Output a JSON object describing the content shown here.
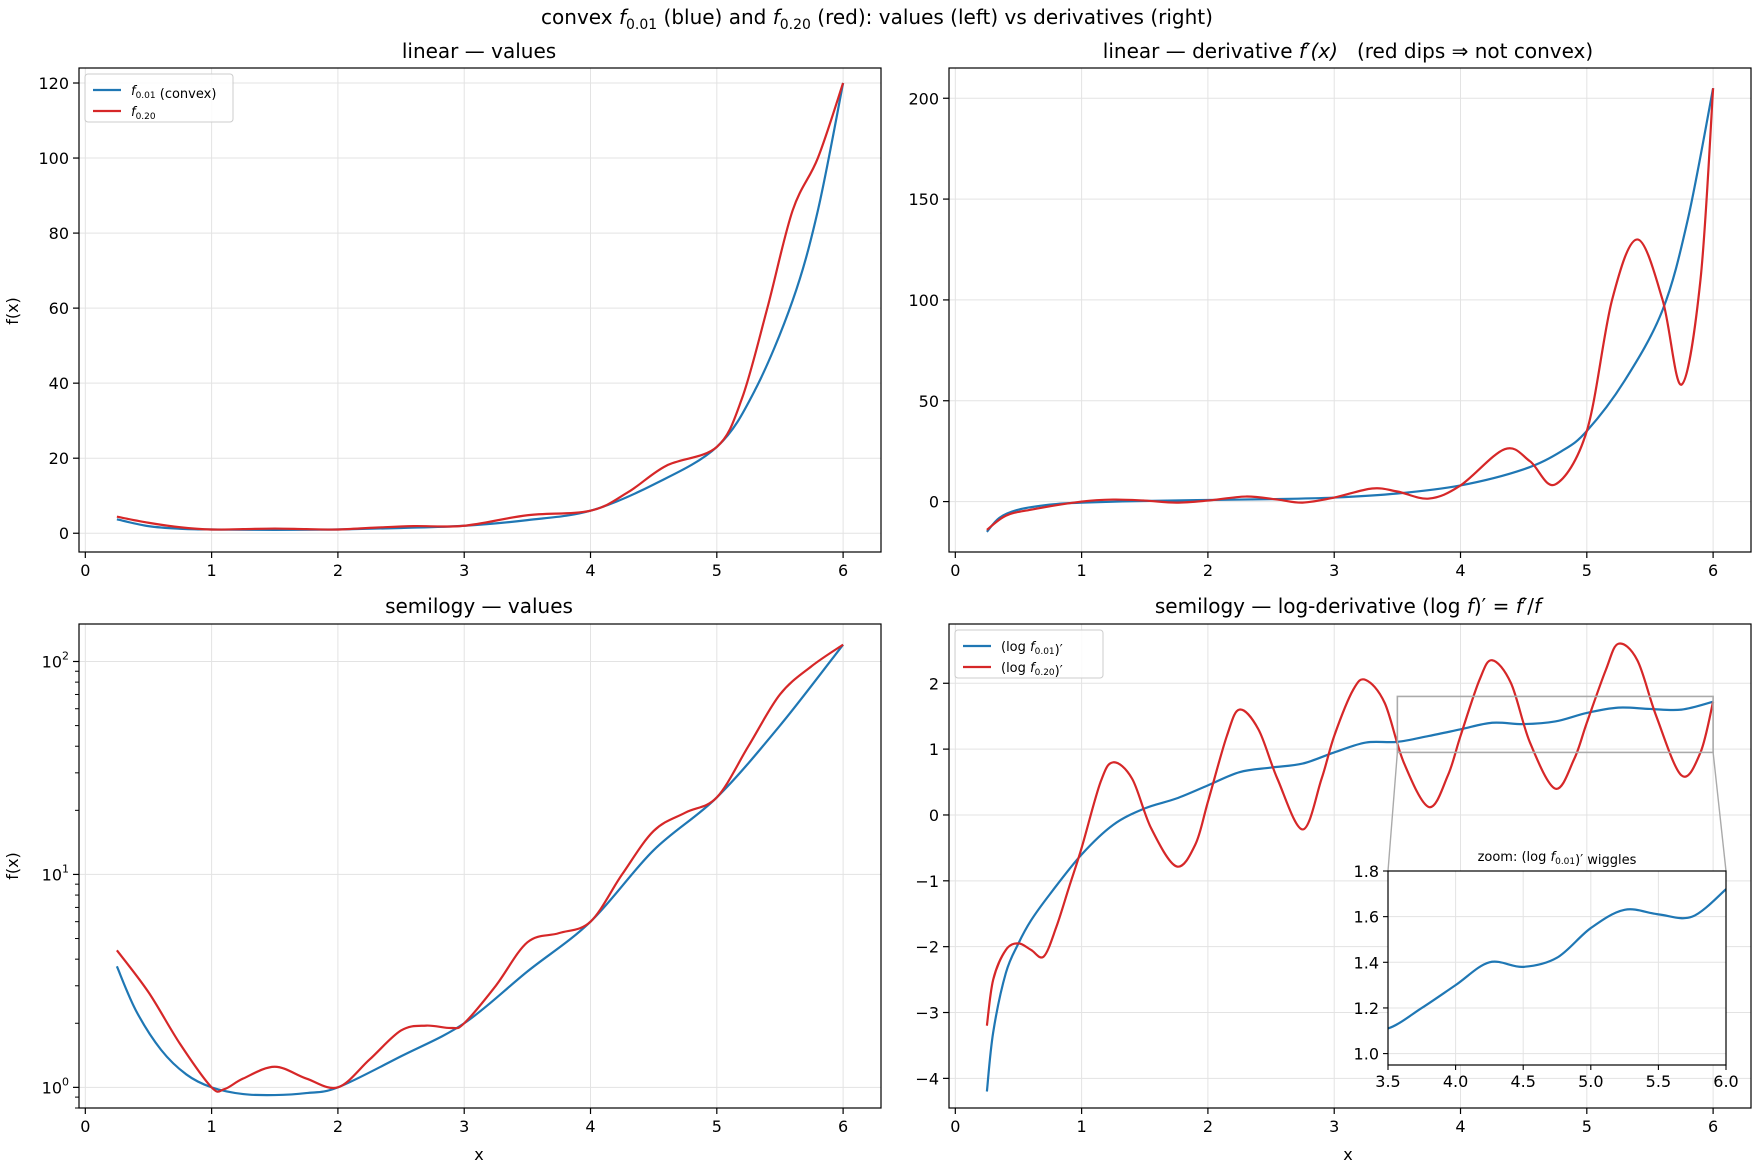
{
  "figure": {
    "suptitle_parts": [
      "convex ",
      "f",
      "0.01",
      " (blue) and ",
      "f",
      "0.20",
      " (red): values (left) vs derivatives (right)"
    ]
  },
  "colors": {
    "blue": "#1f77b4",
    "red": "#d62728",
    "inset_box": "#aaaaaa"
  },
  "chart_data": [
    {
      "id": "tl",
      "type": "line",
      "title": "linear — values",
      "xlabel": "",
      "ylabel": "f(x)",
      "yscale": "linear",
      "xlim": [
        -0.05,
        6.3
      ],
      "ylim": [
        -5,
        124
      ],
      "xticks": [
        0,
        1,
        2,
        3,
        4,
        5,
        6
      ],
      "yticks": [
        0,
        20,
        40,
        60,
        80,
        100,
        120
      ],
      "grid": true,
      "legend": {
        "placement": "upper-left",
        "entries": [
          {
            "label_parts": [
              "f",
              "0.01",
              " (convex)"
            ],
            "series": 0
          },
          {
            "label_parts": [
              "f",
              "0.20",
              ""
            ],
            "series": 1
          }
        ]
      },
      "series": [
        {
          "name": "f0.01 (convex)",
          "color": "blue",
          "x": [
            0.25,
            0.5,
            0.75,
            1.0,
            1.5,
            2.0,
            2.5,
            3.0,
            3.5,
            4.0,
            4.5,
            5.0,
            5.3,
            5.6,
            5.8,
            6.0
          ],
          "y": [
            3.7,
            1.9,
            1.2,
            1.0,
            0.9,
            1.0,
            1.4,
            2.0,
            3.5,
            6.0,
            13.0,
            23.0,
            38.0,
            62.0,
            86.0,
            120.0
          ]
        },
        {
          "name": "f0.20",
          "color": "red",
          "x": [
            0.25,
            0.5,
            0.75,
            1.0,
            1.25,
            1.5,
            1.75,
            2.0,
            2.3,
            2.6,
            3.0,
            3.5,
            4.0,
            4.3,
            4.6,
            5.0,
            5.2,
            5.4,
            5.6,
            5.8,
            6.0
          ],
          "y": [
            4.4,
            2.8,
            1.6,
            1.0,
            1.1,
            1.25,
            1.1,
            1.0,
            1.5,
            1.9,
            2.0,
            4.8,
            6.0,
            11.0,
            18.0,
            23.0,
            36.0,
            60.0,
            86.0,
            100.0,
            120.0
          ]
        }
      ]
    },
    {
      "id": "tr",
      "type": "line",
      "title_parts": [
        "linear — derivative ",
        "f′(x)",
        "   (red dips ⇒ not convex)"
      ],
      "xlabel": "",
      "ylabel": "",
      "yscale": "linear",
      "xlim": [
        -0.05,
        6.3
      ],
      "ylim": [
        -25,
        215
      ],
      "xticks": [
        0,
        1,
        2,
        3,
        4,
        5,
        6
      ],
      "yticks": [
        0,
        50,
        100,
        150,
        200
      ],
      "grid": true,
      "series": [
        {
          "name": "f0.01′",
          "color": "blue",
          "x": [
            0.25,
            0.35,
            0.5,
            0.75,
            1.0,
            1.5,
            2.0,
            2.5,
            3.0,
            3.5,
            4.0,
            4.5,
            4.8,
            5.0,
            5.3,
            5.6,
            5.8,
            6.0
          ],
          "y": [
            -15,
            -8,
            -4,
            -1.5,
            -0.5,
            0.3,
            0.8,
            1.2,
            2.0,
            4.0,
            8.0,
            16.0,
            25.0,
            35.0,
            60.0,
            95.0,
            140.0,
            205.0
          ]
        },
        {
          "name": "f0.20′",
          "color": "red",
          "x": [
            0.25,
            0.4,
            0.6,
            1.0,
            1.25,
            1.5,
            1.75,
            2.0,
            2.3,
            2.55,
            2.75,
            3.0,
            3.3,
            3.5,
            3.75,
            4.0,
            4.35,
            4.55,
            4.75,
            5.0,
            5.2,
            5.4,
            5.6,
            5.75,
            5.9,
            6.0
          ],
          "y": [
            -14,
            -7,
            -4,
            0,
            1,
            0.5,
            -0.5,
            0.5,
            2.5,
            1.0,
            -0.5,
            2.0,
            6.5,
            5.0,
            1.5,
            8.0,
            26.0,
            20.0,
            8.5,
            35.0,
            100.0,
            130.0,
            100.0,
            58.0,
            110.0,
            205.0
          ]
        }
      ]
    },
    {
      "id": "bl",
      "type": "line",
      "title": "semilogy — values",
      "xlabel": "x",
      "ylabel": "f(x)",
      "yscale": "log",
      "xlim": [
        -0.05,
        6.3
      ],
      "ylim": [
        0.8,
        150
      ],
      "xticks": [
        0,
        1,
        2,
        3,
        4,
        5,
        6
      ],
      "yticks_log": [
        {
          "value": 1,
          "base": "10",
          "exp": "0"
        },
        {
          "value": 10,
          "base": "10",
          "exp": "1"
        },
        {
          "value": 100,
          "base": "10",
          "exp": "2"
        }
      ],
      "grid": true,
      "series": [
        {
          "name": "f0.01 (convex)",
          "color": "blue",
          "x": [
            0.25,
            0.4,
            0.6,
            0.8,
            1.0,
            1.25,
            1.5,
            1.75,
            2.0,
            2.5,
            3.0,
            3.5,
            4.0,
            4.5,
            5.0,
            5.5,
            6.0
          ],
          "y": [
            3.7,
            2.3,
            1.5,
            1.15,
            1.0,
            0.93,
            0.92,
            0.94,
            1.0,
            1.4,
            2.0,
            3.5,
            6.0,
            13.0,
            23.0,
            50.0,
            120.0
          ]
        },
        {
          "name": "f0.20",
          "color": "red",
          "x": [
            0.25,
            0.5,
            0.75,
            1.0,
            1.1,
            1.25,
            1.5,
            1.75,
            2.0,
            2.25,
            2.5,
            2.7,
            2.9,
            3.0,
            3.25,
            3.5,
            3.75,
            4.0,
            4.25,
            4.5,
            4.75,
            5.0,
            5.25,
            5.5,
            5.75,
            6.0
          ],
          "y": [
            4.4,
            2.8,
            1.6,
            1.0,
            0.98,
            1.1,
            1.25,
            1.1,
            1.0,
            1.35,
            1.85,
            1.95,
            1.9,
            2.0,
            3.0,
            4.8,
            5.3,
            6.0,
            10.0,
            16.0,
            19.5,
            23.0,
            40.0,
            70.0,
            95.0,
            120.0
          ]
        }
      ]
    },
    {
      "id": "br",
      "type": "line",
      "title_parts": [
        "semilogy — log-derivative ",
        "(log ",
        "f",
        ")′ = ",
        "f′",
        "/",
        "f"
      ],
      "xlabel": "x",
      "ylabel": "",
      "yscale": "linear",
      "xlim": [
        -0.05,
        6.3
      ],
      "ylim": [
        -4.45,
        2.9
      ],
      "xticks": [
        0,
        1,
        2,
        3,
        4,
        5,
        6
      ],
      "yticks": [
        -4,
        -3,
        -2,
        -1,
        0,
        1,
        2
      ],
      "grid": true,
      "legend": {
        "placement": "upper-left",
        "entries": [
          {
            "label_parts": [
              "(log ",
              "f",
              "0.01",
              ")′"
            ],
            "series": 0
          },
          {
            "label_parts": [
              "(log ",
              "f",
              "0.20",
              ")′"
            ],
            "series": 1
          }
        ]
      },
      "series": [
        {
          "name": "(log f0.01)′",
          "color": "blue",
          "x": [
            0.25,
            0.3,
            0.4,
            0.5,
            0.6,
            0.75,
            1.0,
            1.25,
            1.5,
            1.75,
            2.0,
            2.25,
            2.5,
            2.75,
            3.0,
            3.25,
            3.5,
            3.75,
            4.0,
            4.25,
            4.5,
            4.75,
            5.0,
            5.25,
            5.5,
            5.75,
            6.0
          ],
          "y": [
            -4.2,
            -3.3,
            -2.4,
            -1.95,
            -1.6,
            -1.2,
            -0.6,
            -0.15,
            0.1,
            0.25,
            0.45,
            0.65,
            0.72,
            0.78,
            0.95,
            1.1,
            1.11,
            1.2,
            1.3,
            1.4,
            1.38,
            1.42,
            1.55,
            1.63,
            1.61,
            1.6,
            1.72
          ]
        },
        {
          "name": "(log f0.20)′",
          "color": "red",
          "x": [
            0.25,
            0.3,
            0.4,
            0.5,
            0.6,
            0.7,
            0.8,
            0.9,
            1.0,
            1.15,
            1.25,
            1.4,
            1.55,
            1.75,
            1.9,
            2.0,
            2.15,
            2.25,
            2.4,
            2.55,
            2.75,
            2.9,
            3.0,
            3.15,
            3.25,
            3.4,
            3.55,
            3.75,
            3.9,
            4.0,
            4.15,
            4.25,
            4.4,
            4.55,
            4.75,
            4.9,
            5.0,
            5.15,
            5.25,
            5.4,
            5.55,
            5.75,
            5.9,
            6.0
          ],
          "y": [
            -3.2,
            -2.5,
            -2.05,
            -1.95,
            -2.05,
            -2.15,
            -1.7,
            -1.1,
            -0.5,
            0.5,
            0.8,
            0.55,
            -0.2,
            -0.78,
            -0.45,
            0.2,
            1.2,
            1.6,
            1.3,
            0.55,
            -0.22,
            0.55,
            1.2,
            1.9,
            2.05,
            1.7,
            0.8,
            0.12,
            0.6,
            1.2,
            2.05,
            2.35,
            2.0,
            1.1,
            0.4,
            0.85,
            1.4,
            2.2,
            2.6,
            2.35,
            1.5,
            0.6,
            0.95,
            1.72
          ]
        }
      ],
      "inset_region": {
        "x": [
          3.5,
          6.0
        ],
        "y": [
          0.95,
          1.8
        ]
      },
      "inset": {
        "title_parts": [
          "zoom: ",
          "(log ",
          "f",
          "0.01",
          ")′",
          " wiggles"
        ],
        "xlim": [
          3.5,
          6.0
        ],
        "ylim": [
          0.95,
          1.8
        ],
        "xticks": [
          3.5,
          4.0,
          4.5,
          5.0,
          5.5,
          6.0
        ],
        "yticks": [
          1.0,
          1.2,
          1.4,
          1.6,
          1.8
        ],
        "series": 0
      }
    }
  ]
}
